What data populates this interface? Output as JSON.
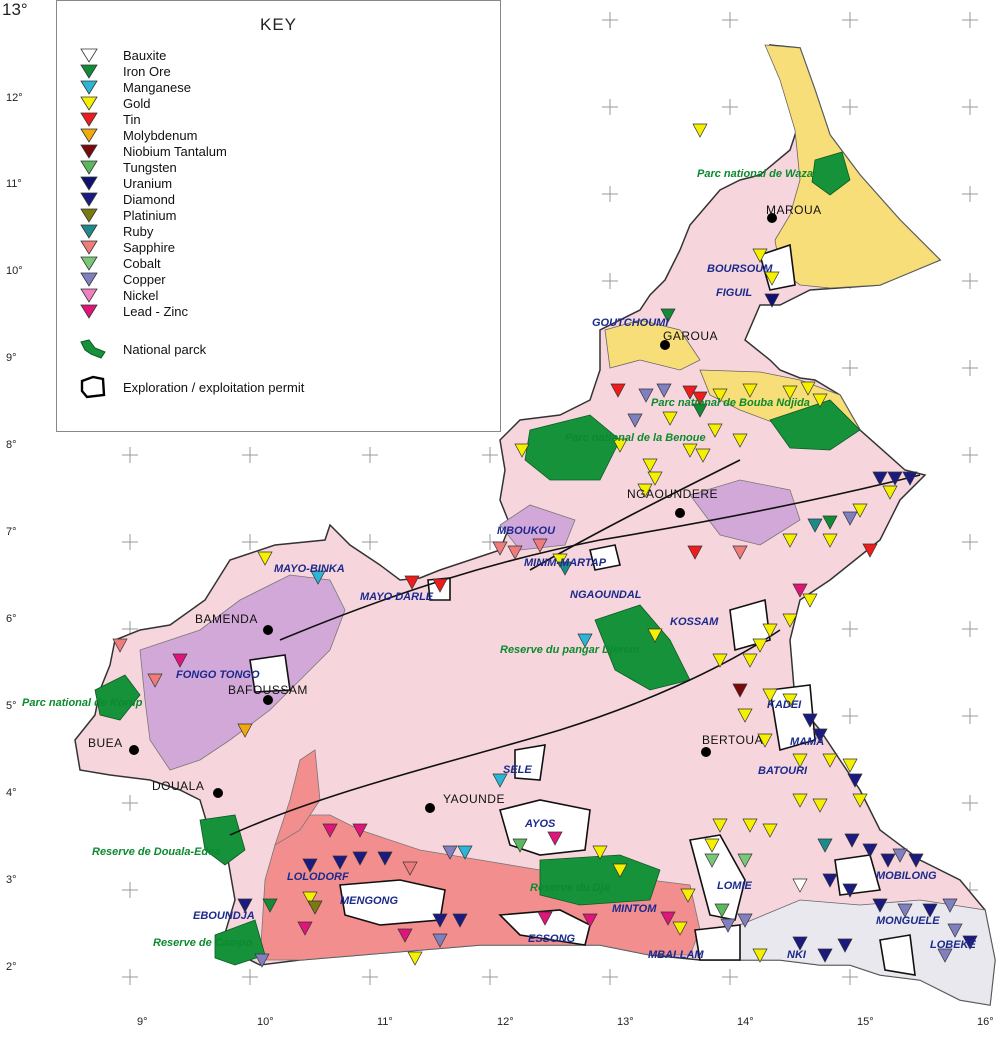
{
  "key": {
    "title": "KEY",
    "minerals": [
      {
        "name": "Bauxite",
        "color": "#ffffff"
      },
      {
        "name": "Iron Ore",
        "color": "#138a35"
      },
      {
        "name": "Manganese",
        "color": "#2bb6d6"
      },
      {
        "name": "Gold",
        "color": "#f4f000"
      },
      {
        "name": "Tin",
        "color": "#ee1c1c"
      },
      {
        "name": "Molybdenum",
        "color": "#f1a90f"
      },
      {
        "name": "Niobium Tantalum",
        "color": "#7a0a0a"
      },
      {
        "name": "Tungsten",
        "color": "#5cb85c"
      },
      {
        "name": "Uranium",
        "color": "#101070"
      },
      {
        "name": "Diamond",
        "color": "#1a1a80"
      },
      {
        "name": "Platinium",
        "color": "#7a7a10"
      },
      {
        "name": "Ruby",
        "color": "#1f8a8a"
      },
      {
        "name": "Sapphire",
        "color": "#f07b7b"
      },
      {
        "name": "Cobalt",
        "color": "#79c879"
      },
      {
        "name": "Copper",
        "color": "#8080c0"
      },
      {
        "name": "Nickel",
        "color": "#f080c0"
      },
      {
        "name": "Lead - Zinc",
        "color": "#e0157a"
      }
    ],
    "park_label": "National parck",
    "permit_label": "Exploration / exploitation permit"
  },
  "latitudes": [
    "13°",
    "12°",
    "11°",
    "10°",
    "9°",
    "8°",
    "7°",
    "6°",
    "5°",
    "4°",
    "3°",
    "2°"
  ],
  "longitudes": [
    "9°",
    "10°",
    "11°",
    "12°",
    "13°",
    "14°",
    "15°",
    "16°"
  ],
  "cities": [
    "MAROUA",
    "GAROUA",
    "NGAOUNDERE",
    "BAMENDA",
    "BAFOUSSAM",
    "BUEA",
    "DOUALA",
    "YAOUNDE",
    "BERTOUA"
  ],
  "parks": [
    "Parc national de Waza",
    "Parc national de Bouba Ndjida",
    "Parc national de la Benoue",
    "Reserve du pangar Djerem",
    "Parc national de Korup",
    "Reserve de Douala-Edea",
    "Reserve de Campo",
    "Reserve du Dja"
  ],
  "permits": [
    "BOURSOUM",
    "FIGUIL",
    "GOUTCHOUMI",
    "MBOUKOU",
    "MINIM-MARTAP",
    "NGAOUNDAL",
    "MAYO-BINKA",
    "MAYO DARLE",
    "KOSSAM",
    "FONGO TONGO",
    "KADEI",
    "MAMA",
    "BATOURI",
    "SELE",
    "AYOS",
    "LOLODORF",
    "MENGONG",
    "EBOUNDJA",
    "LOMIE",
    "MOBILONG",
    "MINTOM",
    "ESSONG",
    "MONGUELE",
    "LOBEKE",
    "MBALLAM",
    "NKI"
  ],
  "colors": {
    "land": "#f6d6dc",
    "north": "#f8de78",
    "south": "#f38e8e",
    "volcanic": "#d2a8d8",
    "park": "#16923a",
    "sediment": "#e8e8ee"
  }
}
